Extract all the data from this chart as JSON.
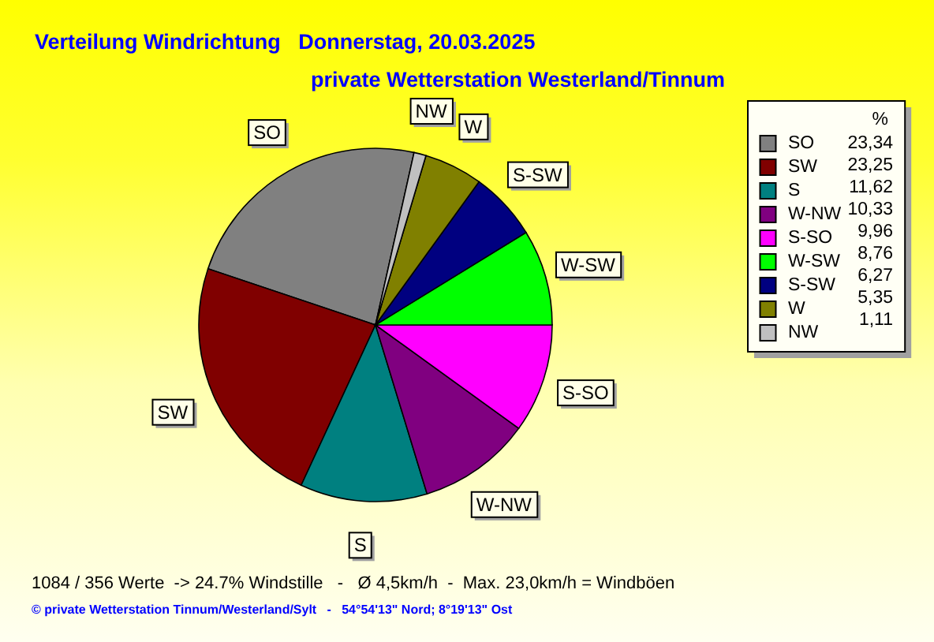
{
  "chart_data": {
    "type": "pie",
    "title": "Verteilung Windrichtung   Donnerstag, 20.03.2025",
    "subtitle": "private Wetterstation Westerland/Tinnum",
    "legend_title": "%",
    "categories": [
      "SO",
      "SW",
      "S",
      "W-NW",
      "S-SO",
      "W-SW",
      "S-SW",
      "W",
      "NW"
    ],
    "values": [
      23.34,
      23.25,
      11.62,
      10.33,
      9.96,
      8.76,
      6.27,
      5.35,
      1.11
    ],
    "value_labels": [
      "23,34",
      "23,25",
      "11,62",
      "10,33",
      "9,96",
      "8,76",
      "6,27",
      "5,35",
      "1,11"
    ],
    "colors": [
      "#808080",
      "#800000",
      "#008080",
      "#800080",
      "#ff00ff",
      "#00ff00",
      "#000080",
      "#808000",
      "#c0c0c0"
    ],
    "legend": "right",
    "annotations": [
      "1084 / 356 Werte  -> 24.7% Windstille   -   Ø 4,5km/h  -  Max. 23,0km/h = Windböen",
      "© private Wetterstation Tinnum/Westerland/Sylt   -   54°54'13\" Nord; 8°19'13\" Ost"
    ]
  }
}
